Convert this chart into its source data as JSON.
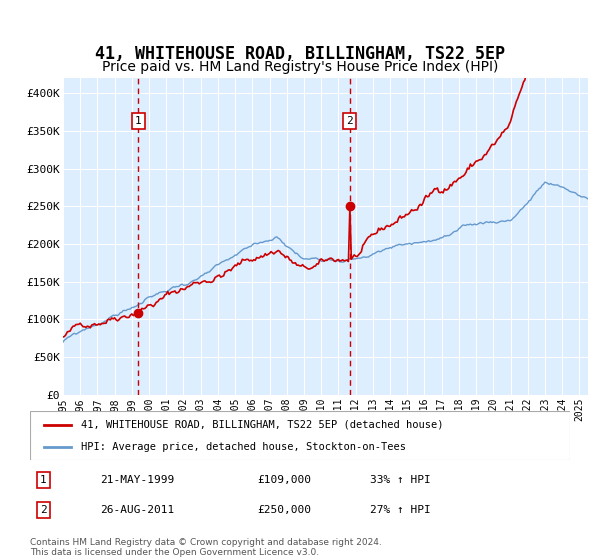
{
  "title": "41, WHITEHOUSE ROAD, BILLINGHAM, TS22 5EP",
  "subtitle": "Price paid vs. HM Land Registry's House Price Index (HPI)",
  "ylabel_ticks": [
    "£0",
    "£50K",
    "£100K",
    "£150K",
    "£200K",
    "£250K",
    "£300K",
    "£350K",
    "£400K"
  ],
  "ytick_vals": [
    0,
    50000,
    100000,
    150000,
    200000,
    250000,
    300000,
    350000,
    400000
  ],
  "ylim": [
    0,
    420000
  ],
  "xlim_start": 1995.0,
  "xlim_end": 2025.5,
  "sale1_date": 1999.38,
  "sale1_price": 109000,
  "sale2_date": 2011.65,
  "sale2_price": 250000,
  "red_color": "#cc0000",
  "blue_color": "#6699cc",
  "vline_color": "#cc0000",
  "background_color": "#ddeeff",
  "grid_color": "#ffffff",
  "title_fontsize": 12,
  "subtitle_fontsize": 10,
  "legend_label1": "41, WHITEHOUSE ROAD, BILLINGHAM, TS22 5EP (detached house)",
  "legend_label2": "HPI: Average price, detached house, Stockton-on-Tees",
  "annotation1_label": "1",
  "annotation2_label": "2",
  "table_row1": [
    "1",
    "21-MAY-1999",
    "£109,000",
    "33% ↑ HPI"
  ],
  "table_row2": [
    "2",
    "26-AUG-2011",
    "£250,000",
    "27% ↑ HPI"
  ],
  "footer": "Contains HM Land Registry data © Crown copyright and database right 2024.\nThis data is licensed under the Open Government Licence v3.0.",
  "xtick_years": [
    1995,
    1996,
    1997,
    1998,
    1999,
    2000,
    2001,
    2002,
    2003,
    2004,
    2005,
    2006,
    2007,
    2008,
    2009,
    2010,
    2011,
    2012,
    2013,
    2014,
    2015,
    2016,
    2017,
    2018,
    2019,
    2020,
    2021,
    2022,
    2023,
    2024,
    2025
  ]
}
